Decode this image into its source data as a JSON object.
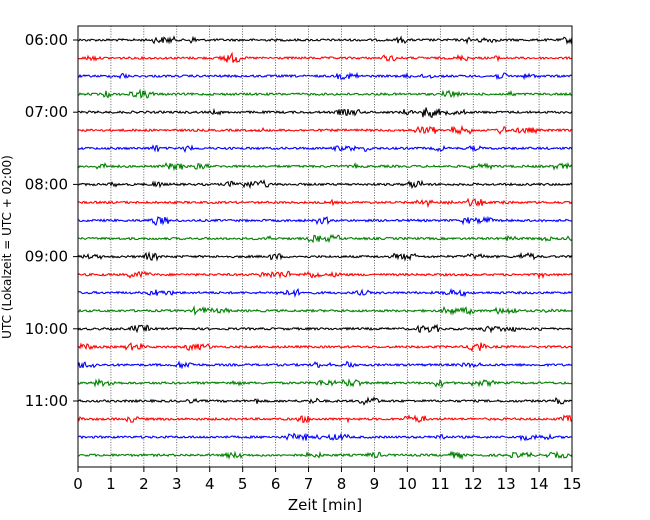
{
  "chart_data": {
    "type": "line",
    "xlabel": "Zeit  [min]",
    "ylabel": "UTC (Lokalzeit = UTC + 02:00)",
    "xlim": [
      0,
      15
    ],
    "x_ticks": [
      "0",
      "1",
      "2",
      "3",
      "4",
      "5",
      "6",
      "7",
      "8",
      "9",
      "10",
      "11",
      "12",
      "13",
      "14",
      "15"
    ],
    "y_ticks": [
      "06:00",
      "07:00",
      "08:00",
      "09:00",
      "10:00",
      "11:00"
    ],
    "grid": "vertical dotted lines at each minute",
    "trace_interval_min": 15,
    "trace_color_cycle": [
      "#000000",
      "#ff0000",
      "#0000ff",
      "#008000"
    ],
    "traces": [
      {
        "start": "06:00",
        "color": "#000000"
      },
      {
        "start": "06:15",
        "color": "#ff0000"
      },
      {
        "start": "06:30",
        "color": "#0000ff"
      },
      {
        "start": "06:45",
        "color": "#008000"
      },
      {
        "start": "07:00",
        "color": "#000000"
      },
      {
        "start": "07:15",
        "color": "#ff0000"
      },
      {
        "start": "07:30",
        "color": "#0000ff"
      },
      {
        "start": "07:45",
        "color": "#008000"
      },
      {
        "start": "08:00",
        "color": "#000000"
      },
      {
        "start": "08:15",
        "color": "#ff0000"
      },
      {
        "start": "08:30",
        "color": "#0000ff"
      },
      {
        "start": "08:45",
        "color": "#008000"
      },
      {
        "start": "09:00",
        "color": "#000000"
      },
      {
        "start": "09:15",
        "color": "#ff0000"
      },
      {
        "start": "09:30",
        "color": "#0000ff"
      },
      {
        "start": "09:45",
        "color": "#008000"
      },
      {
        "start": "10:00",
        "color": "#000000"
      },
      {
        "start": "10:15",
        "color": "#ff0000"
      },
      {
        "start": "10:30",
        "color": "#0000ff"
      },
      {
        "start": "10:45",
        "color": "#008000"
      },
      {
        "start": "11:00",
        "color": "#000000"
      },
      {
        "start": "11:15",
        "color": "#ff0000"
      },
      {
        "start": "11:30",
        "color": "#0000ff"
      },
      {
        "start": "11:45",
        "color": "#008000"
      }
    ]
  }
}
